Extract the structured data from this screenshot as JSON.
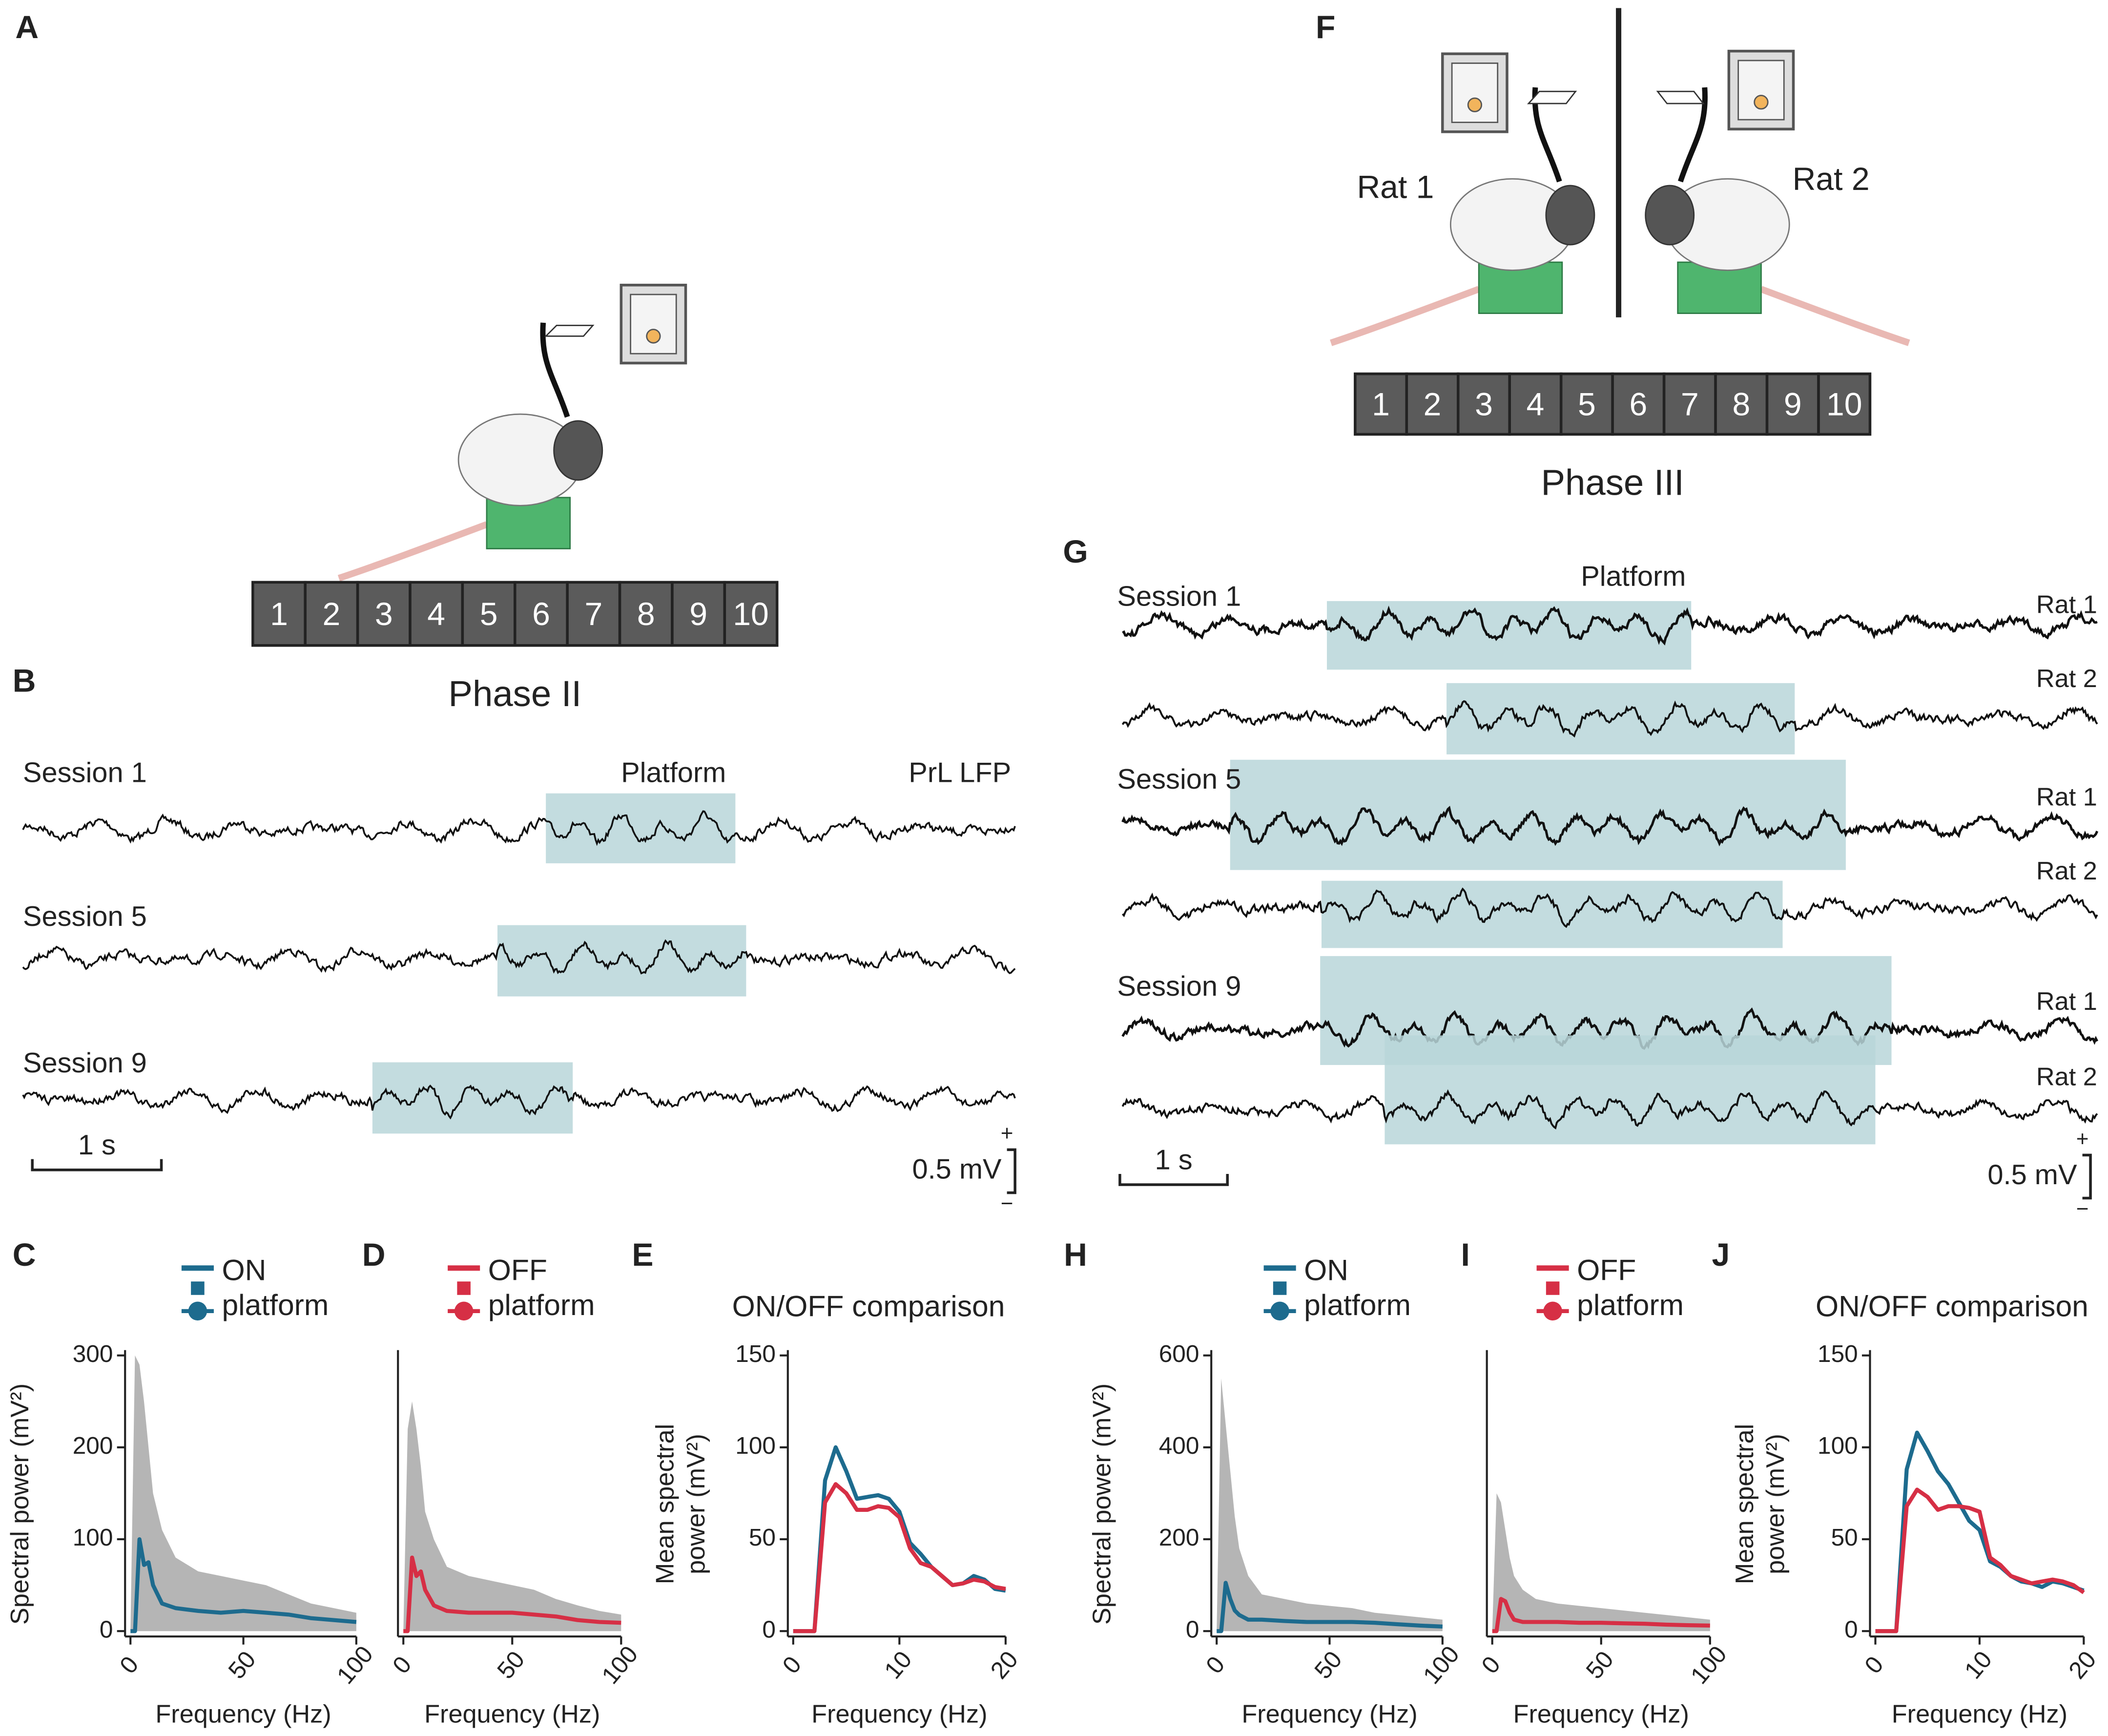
{
  "panel_letters": [
    "A",
    "B",
    "C",
    "D",
    "E",
    "F",
    "G",
    "H",
    "I",
    "J"
  ],
  "phase_ii": {
    "label": "Phase II",
    "boxes": [
      "1",
      "2",
      "3",
      "4",
      "5",
      "6",
      "7",
      "8",
      "9",
      "10"
    ]
  },
  "phase_iii": {
    "label": "Phase III",
    "boxes": [
      "1",
      "2",
      "3",
      "4",
      "5",
      "6",
      "7",
      "8",
      "9",
      "10"
    ],
    "rats": [
      "Rat 1",
      "Rat 2"
    ]
  },
  "panel_b": {
    "sessions": [
      "Session 1",
      "Session 5",
      "Session 9"
    ],
    "platform": "Platform",
    "recording": "PrL LFP",
    "time_scale": "1 s",
    "voltage_scale": "0.5 mV",
    "plus": "+",
    "minus": "−"
  },
  "panel_g": {
    "sessions": [
      "Session 1",
      "Session 5",
      "Session 9"
    ],
    "platform": "Platform",
    "rats": [
      "Rat 1",
      "Rat 2"
    ],
    "time_scale": "1 s",
    "voltage_scale": "0.5 mV",
    "plus": "+",
    "minus": "−"
  },
  "chart_data": [
    {
      "type": "line",
      "x_label": "Frequency (Hz)",
      "y_label": "Spectral power (mV²)",
      "x": [
        0,
        2,
        4,
        6,
        8,
        10,
        14,
        20,
        30,
        40,
        50,
        60,
        70,
        80,
        90,
        100
      ],
      "series": [
        {
          "name": "ON platform",
          "color": "#1d6b8e",
          "values": [
            0,
            0,
            100,
            72,
            75,
            50,
            30,
            25,
            22,
            20,
            22,
            20,
            18,
            14,
            12,
            10
          ]
        }
      ],
      "spread": {
        "color": "#b5b5b5",
        "upper": [
          0,
          300,
          290,
          250,
          200,
          150,
          110,
          80,
          65,
          60,
          55,
          50,
          40,
          30,
          25,
          20
        ]
      },
      "xlim": [
        0,
        100
      ],
      "xticks": [
        0,
        50,
        100
      ],
      "ylim": [
        0,
        300
      ],
      "yticks": [
        0,
        100,
        200,
        300
      ]
    },
    {
      "type": "line",
      "x_label": "Frequency (Hz)",
      "x": [
        0,
        2,
        4,
        6,
        8,
        10,
        14,
        20,
        30,
        40,
        50,
        60,
        70,
        80,
        90,
        100
      ],
      "series": [
        {
          "name": "OFF platform",
          "color": "#d62f45",
          "values": [
            0,
            0,
            80,
            60,
            65,
            45,
            28,
            22,
            20,
            20,
            20,
            18,
            16,
            12,
            10,
            9
          ]
        }
      ],
      "spread": {
        "color": "#b5b5b5",
        "upper": [
          0,
          220,
          250,
          220,
          180,
          130,
          100,
          70,
          60,
          55,
          50,
          45,
          35,
          28,
          22,
          18
        ]
      },
      "xlim": [
        0,
        100
      ],
      "xticks": [
        0,
        50,
        100
      ],
      "ylim": [
        0,
        300
      ]
    },
    {
      "type": "line",
      "title": "ON/OFF comparison",
      "x_label": "Frequency (Hz)",
      "y_label": "Mean spectral power (mV²)",
      "x": [
        0,
        1,
        2,
        3,
        4,
        5,
        6,
        7,
        8,
        9,
        10,
        11,
        12,
        13,
        14,
        15,
        16,
        17,
        18,
        19,
        20
      ],
      "series": [
        {
          "color": "#1d6b8e",
          "values": [
            0,
            0,
            0,
            82,
            100,
            87,
            72,
            73,
            74,
            72,
            65,
            48,
            42,
            35,
            30,
            25,
            26,
            30,
            28,
            23,
            22
          ]
        },
        {
          "color": "#d62f45",
          "values": [
            0,
            0,
            0,
            70,
            80,
            75,
            66,
            66,
            68,
            67,
            62,
            45,
            37,
            35,
            30,
            25,
            26,
            28,
            27,
            24,
            23
          ]
        }
      ],
      "xlim": [
        0,
        20
      ],
      "xticks": [
        0,
        10,
        20
      ],
      "ylim": [
        0,
        150
      ],
      "yticks": [
        0,
        50,
        100,
        150
      ]
    },
    {
      "type": "line",
      "x_label": "Frequency (Hz)",
      "y_label": "Spectral power (mV²)",
      "x": [
        0,
        2,
        4,
        6,
        8,
        10,
        14,
        20,
        30,
        40,
        50,
        60,
        70,
        80,
        90,
        100
      ],
      "series": [
        {
          "name": "ON platform",
          "color": "#1d6b8e",
          "values": [
            0,
            0,
            105,
            70,
            45,
            35,
            25,
            25,
            22,
            20,
            20,
            20,
            18,
            15,
            12,
            10
          ]
        }
      ],
      "spread": {
        "color": "#b5b5b5",
        "upper": [
          0,
          550,
          450,
          350,
          250,
          180,
          120,
          80,
          70,
          60,
          55,
          50,
          40,
          35,
          30,
          25
        ]
      },
      "xlim": [
        0,
        100
      ],
      "xticks": [
        0,
        50,
        100
      ],
      "ylim": [
        0,
        600
      ],
      "yticks": [
        0,
        200,
        400,
        600
      ]
    },
    {
      "type": "line",
      "x_label": "Frequency (Hz)",
      "x": [
        0,
        2,
        4,
        6,
        8,
        10,
        14,
        20,
        30,
        40,
        50,
        60,
        70,
        80,
        90,
        100
      ],
      "series": [
        {
          "name": "OFF platform",
          "color": "#d62f45",
          "values": [
            0,
            0,
            70,
            65,
            40,
            25,
            20,
            20,
            20,
            18,
            18,
            17,
            16,
            14,
            13,
            12
          ]
        }
      ],
      "spread": {
        "color": "#b5b5b5",
        "upper": [
          0,
          300,
          280,
          220,
          160,
          120,
          90,
          70,
          60,
          55,
          50,
          45,
          40,
          35,
          30,
          25
        ]
      },
      "xlim": [
        0,
        100
      ],
      "xticks": [
        0,
        50,
        100
      ],
      "ylim": [
        0,
        600
      ]
    },
    {
      "type": "line",
      "title": "ON/OFF comparison",
      "x_label": "Frequency (Hz)",
      "y_label": "Mean spectral power (mV²)",
      "x": [
        0,
        1,
        2,
        3,
        4,
        5,
        6,
        7,
        8,
        9,
        10,
        11,
        12,
        13,
        14,
        15,
        16,
        17,
        18,
        19,
        20
      ],
      "series": [
        {
          "color": "#1d6b8e",
          "values": [
            0,
            0,
            0,
            88,
            108,
            98,
            87,
            80,
            70,
            60,
            55,
            38,
            35,
            30,
            27,
            26,
            24,
            27,
            26,
            24,
            22
          ]
        },
        {
          "color": "#d62f45",
          "values": [
            0,
            0,
            0,
            68,
            77,
            73,
            66,
            68,
            68,
            67,
            65,
            40,
            36,
            30,
            28,
            26,
            27,
            28,
            27,
            25,
            21
          ]
        }
      ],
      "xlim": [
        0,
        20
      ],
      "xticks": [
        0,
        10,
        20
      ],
      "ylim": [
        0,
        150
      ],
      "yticks": [
        0,
        50,
        100,
        150
      ]
    }
  ]
}
